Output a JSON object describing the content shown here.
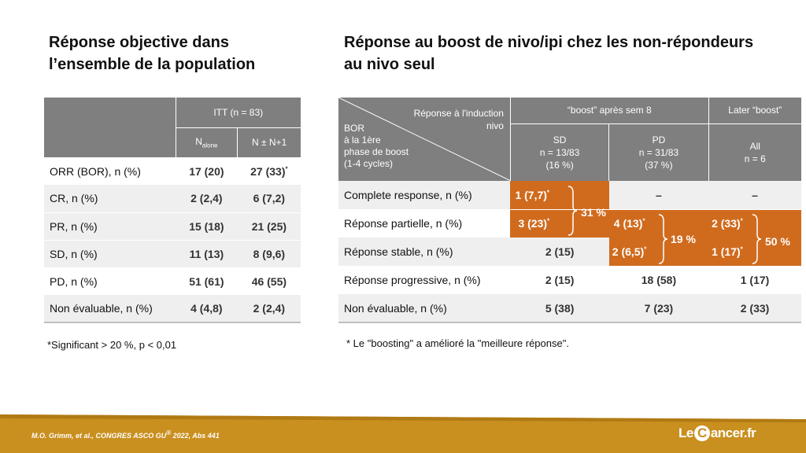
{
  "left": {
    "title_line1": "Réponse objective dans",
    "title_line2": "l’ensemble de la population",
    "table": {
      "group_header": "ITT (n = 83)",
      "col1_main": "N",
      "col1_sub": "alone",
      "col2": "N ± N+1",
      "rows": [
        {
          "label": "ORR (BOR), n (%)",
          "v1": "17 (20)",
          "v2": "27 (33)",
          "v2_mark": "*"
        },
        {
          "label": "CR, n (%)",
          "v1": "2 (2,4)",
          "v2": "6 (7,2)",
          "v2_mark": ""
        },
        {
          "label": "PR, n (%)",
          "v1": "15 (18)",
          "v2": "21 (25)",
          "v2_mark": ""
        },
        {
          "label": "SD, n (%)",
          "v1": "11 (13)",
          "v2": "8 (9,6)",
          "v2_mark": ""
        },
        {
          "label": "PD, n (%)",
          "v1": "51 (61)",
          "v2": "46 (55)",
          "v2_mark": ""
        },
        {
          "label": "Non évaluable, n (%)",
          "v1": "4 (4,8)",
          "v2": "2 (2,4)",
          "v2_mark": ""
        }
      ]
    },
    "footnote": "*Significant > 20 %, p < 0,01"
  },
  "right": {
    "title_line1": "Réponse au boost de nivo/ipi chez les non-répondeurs",
    "title_line2": "au nivo seul",
    "table": {
      "corner_top_line1": "Réponse à l'induction",
      "corner_top_line2": "nivo",
      "corner_bottom_lines": [
        "BOR",
        "à la 1ère",
        "phase de boost",
        "(1-4 cycles)"
      ],
      "group1": "“boost” après sem 8",
      "group2": "Later “boost”",
      "sd_head": [
        "SD",
        "n = 13/83",
        "(16 %)"
      ],
      "pd_head": [
        "PD",
        "n = 31/83",
        "(37 %)"
      ],
      "all_head": [
        "All",
        "n = 6"
      ],
      "rows": [
        {
          "label": "Complete response, n (%)",
          "sd": "1 (7,7)",
          "pd": "–",
          "all": "–"
        },
        {
          "label": "Réponse partielle, n (%)",
          "sd": "3 (23)",
          "pd": "4 (13)",
          "all": "2 (33)"
        },
        {
          "label": "Réponse stable, n (%)",
          "sd": "2 (15)",
          "pd": "2 (6,5)",
          "all": "1 (17)"
        },
        {
          "label": "Réponse progressive, n (%)",
          "sd": "2 (15)",
          "pd": "18 (58)",
          "all": "1 (17)"
        },
        {
          "label": "Non évaluable, n (%)",
          "sd": "5 (38)",
          "pd": "7 (23)",
          "all": "2 (33)"
        }
      ],
      "mark": "*",
      "pct_sd": "31 %",
      "pct_pd": "19 %",
      "pct_all": "50 %"
    },
    "footnote": "* Le \"boosting\" a amélioré la \"meilleure réponse\"."
  },
  "footer": {
    "reference": "M.O. Grimm, et al., CONGRES ASCO GU",
    "reference_mark": "®",
    "reference_tail": " 2022, Abs 441",
    "logo_left": "Le",
    "logo_c": "C",
    "logo_right": "ancer.fr"
  },
  "colors": {
    "header_gray": "#7f7f7f",
    "row_shade": "#efefef",
    "accent_orange": "#d06b1e",
    "footer_gold": "#c98f1f"
  }
}
